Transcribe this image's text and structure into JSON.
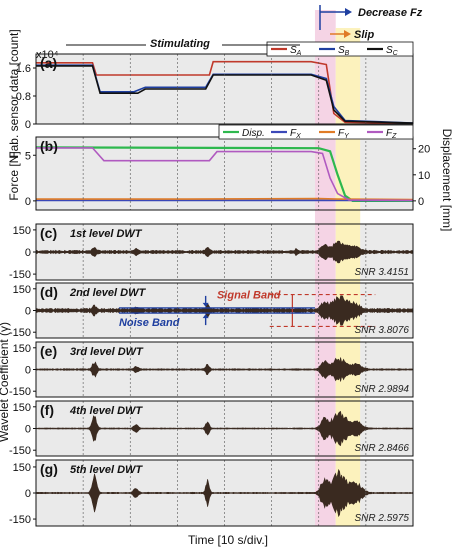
{
  "header": {
    "decrease_label": "Decrease Fz",
    "slip_label": "Slip",
    "stimulating_label": "Stimulating",
    "exponent_label": "x10⁴"
  },
  "axes_text": {
    "xlabel": "Time [10 s/div.]",
    "ylabel_a": "Fab. sensor data [count]",
    "ylabel_b": "Force [N]",
    "ylabel_b_right": "Displacement [mm]",
    "ylabel_dwt": "Wavelet Coefficient (γ)"
  },
  "colors": {
    "sA": "#c0392b",
    "sB": "#1f3fa0",
    "sC": "#111111",
    "disp": "#2eb84e",
    "Fx": "#3b48b8",
    "Fy": "#e07b26",
    "Fz": "#b05ac0",
    "pink": "#f2c6dc",
    "yellow": "#fbf0b2",
    "gray": "#d9d9d9",
    "wave": "#3a2a20",
    "signal_band": "#c0392b",
    "noise_band": "#1f3fa0"
  },
  "chart_data": [
    {
      "id": "a",
      "letter": "(a)",
      "type": "line",
      "ylim": [
        0,
        2.0
      ],
      "yticks": [
        "1.6",
        "0.8",
        "0"
      ],
      "ytick_values": [
        1.6,
        0.8,
        0
      ],
      "legend": [
        "SA",
        "SB",
        "SC"
      ],
      "series": [
        {
          "name": "SA",
          "color_key": "sA",
          "points": [
            [
              0,
              1.75
            ],
            [
              0.15,
              1.75
            ],
            [
              0.16,
              1.4
            ],
            [
              0.46,
              1.4
            ],
            [
              0.47,
              1.78
            ],
            [
              0.73,
              1.78
            ],
            [
              0.77,
              1.7
            ],
            [
              0.79,
              0.3
            ],
            [
              0.82,
              0.05
            ],
            [
              1.0,
              0.02
            ]
          ]
        },
        {
          "name": "SB",
          "color_key": "sB",
          "points": [
            [
              0,
              1.68
            ],
            [
              0.15,
              1.68
            ],
            [
              0.17,
              0.92
            ],
            [
              0.26,
              0.92
            ],
            [
              0.29,
              1.05
            ],
            [
              0.45,
              1.05
            ],
            [
              0.47,
              1.42
            ],
            [
              0.73,
              1.42
            ],
            [
              0.77,
              1.3
            ],
            [
              0.79,
              0.5
            ],
            [
              0.82,
              0.1
            ],
            [
              1.0,
              0.03
            ]
          ]
        },
        {
          "name": "SC",
          "color_key": "sC",
          "points": [
            [
              0,
              1.66
            ],
            [
              0.15,
              1.66
            ],
            [
              0.17,
              0.88
            ],
            [
              0.27,
              0.88
            ],
            [
              0.29,
              1.0
            ],
            [
              0.45,
              1.0
            ],
            [
              0.47,
              1.4
            ],
            [
              0.73,
              1.4
            ],
            [
              0.77,
              1.25
            ],
            [
              0.79,
              0.4
            ],
            [
              0.82,
              0.08
            ],
            [
              1.0,
              0.03
            ]
          ]
        }
      ]
    },
    {
      "id": "b",
      "letter": "(b)",
      "type": "line",
      "ylim": [
        -1,
        7
      ],
      "yticks": [
        "5",
        "0"
      ],
      "ytick_values": [
        5,
        0
      ],
      "y2ticks": [
        "20",
        "10",
        "0"
      ],
      "y2tick_values": [
        20,
        10,
        0
      ],
      "y2lim": [
        -3.5,
        24.5
      ],
      "legend": [
        "Disp.",
        "FX",
        "FY",
        "FZ"
      ],
      "series": [
        {
          "name": "Disp.",
          "color_key": "disp",
          "axis": "right",
          "points": [
            [
              0,
              20.5
            ],
            [
              0.75,
              20.2
            ],
            [
              0.78,
              19.0
            ],
            [
              0.8,
              10.0
            ],
            [
              0.82,
              2.0
            ],
            [
              0.84,
              0.0
            ],
            [
              1.0,
              0.0
            ]
          ]
        },
        {
          "name": "FX",
          "color_key": "Fx",
          "axis": "left",
          "points": [
            [
              0,
              0.05
            ],
            [
              1.0,
              0.05
            ]
          ]
        },
        {
          "name": "FY",
          "color_key": "Fy",
          "axis": "left",
          "points": [
            [
              0,
              0.2
            ],
            [
              0.4,
              0.2
            ],
            [
              0.75,
              0.25
            ],
            [
              0.8,
              0.2
            ],
            [
              1.0,
              0.15
            ]
          ]
        },
        {
          "name": "FZ",
          "color_key": "Fz",
          "axis": "left",
          "points": [
            [
              0,
              5.8
            ],
            [
              0.15,
              5.8
            ],
            [
              0.18,
              4.4
            ],
            [
              0.46,
              4.4
            ],
            [
              0.48,
              5.4
            ],
            [
              0.73,
              5.4
            ],
            [
              0.76,
              5.2
            ],
            [
              0.78,
              2.5
            ],
            [
              0.8,
              0.8
            ],
            [
              0.83,
              0.1
            ],
            [
              1.0,
              0.05
            ]
          ]
        }
      ]
    },
    {
      "id": "c",
      "letter": "(c)",
      "title": "1st level DWT",
      "snr": "SNR 3.4151",
      "type": "area",
      "ylim": [
        -190,
        190
      ],
      "yticks": [
        "150",
        "0",
        "-150"
      ],
      "ytick_values": [
        150,
        0,
        -150
      ],
      "base_amp": 8,
      "bursts": [
        {
          "t": 0.155,
          "amp": 25,
          "w": 0.008
        },
        {
          "t": 0.265,
          "amp": 18,
          "w": 0.008
        },
        {
          "t": 0.455,
          "amp": 30,
          "w": 0.006
        },
        {
          "t": 0.69,
          "amp": 20,
          "w": 0.004
        },
        {
          "t": 0.765,
          "amp": 45,
          "w": 0.012
        },
        {
          "t": 0.805,
          "amp": 70,
          "w": 0.025
        },
        {
          "t": 0.845,
          "amp": 35,
          "w": 0.02
        }
      ]
    },
    {
      "id": "d",
      "letter": "(d)",
      "title": "2nd level DWT",
      "snr": "SNR 3.8076",
      "type": "area",
      "ylim": [
        -190,
        190
      ],
      "yticks": [
        "150",
        "0",
        "-150"
      ],
      "ytick_values": [
        150,
        0,
        -150
      ],
      "base_amp": 10,
      "signal_band": "Signal Band",
      "noise_band": "Noise Band",
      "signal_level": 110,
      "noise_level": 18,
      "bursts": [
        {
          "t": 0.155,
          "amp": 28,
          "w": 0.008
        },
        {
          "t": 0.265,
          "amp": 22,
          "w": 0.008
        },
        {
          "t": 0.455,
          "amp": 40,
          "w": 0.006
        },
        {
          "t": 0.765,
          "amp": 55,
          "w": 0.012
        },
        {
          "t": 0.805,
          "amp": 100,
          "w": 0.025
        },
        {
          "t": 0.845,
          "amp": 40,
          "w": 0.02
        }
      ]
    },
    {
      "id": "e",
      "letter": "(e)",
      "title": "3rd level DWT",
      "snr": "SNR 2.9894",
      "type": "area",
      "ylim": [
        -190,
        190
      ],
      "yticks": [
        "150",
        "0",
        "-150"
      ],
      "ytick_values": [
        150,
        0,
        -150
      ],
      "base_amp": 4,
      "bursts": [
        {
          "t": 0.155,
          "amp": 55,
          "w": 0.008
        },
        {
          "t": 0.265,
          "amp": 20,
          "w": 0.008
        },
        {
          "t": 0.455,
          "amp": 40,
          "w": 0.006
        },
        {
          "t": 0.765,
          "amp": 60,
          "w": 0.012
        },
        {
          "t": 0.805,
          "amp": 85,
          "w": 0.025
        },
        {
          "t": 0.85,
          "amp": 35,
          "w": 0.02
        }
      ]
    },
    {
      "id": "f",
      "letter": "(f)",
      "title": "4th level DWT",
      "snr": "SNR 2.8466",
      "type": "area",
      "ylim": [
        -190,
        190
      ],
      "yticks": [
        "150",
        "0",
        "-150"
      ],
      "ytick_values": [
        150,
        0,
        -150
      ],
      "base_amp": 3,
      "bursts": [
        {
          "t": 0.155,
          "amp": 95,
          "w": 0.008
        },
        {
          "t": 0.265,
          "amp": 25,
          "w": 0.008
        },
        {
          "t": 0.455,
          "amp": 65,
          "w": 0.006
        },
        {
          "t": 0.765,
          "amp": 85,
          "w": 0.012
        },
        {
          "t": 0.805,
          "amp": 120,
          "w": 0.025
        },
        {
          "t": 0.85,
          "amp": 50,
          "w": 0.02
        }
      ]
    },
    {
      "id": "g",
      "letter": "(g)",
      "title": "5th level DWT",
      "snr": "SNR 2.5975",
      "type": "area",
      "ylim": [
        -190,
        190
      ],
      "yticks": [
        "150",
        "0",
        "-150"
      ],
      "ytick_values": [
        150,
        0,
        -150
      ],
      "base_amp": 3,
      "bursts": [
        {
          "t": 0.155,
          "amp": 110,
          "w": 0.008
        },
        {
          "t": 0.265,
          "amp": 30,
          "w": 0.008
        },
        {
          "t": 0.455,
          "amp": 80,
          "w": 0.006
        },
        {
          "t": 0.765,
          "amp": 95,
          "w": 0.012
        },
        {
          "t": 0.805,
          "amp": 140,
          "w": 0.025
        },
        {
          "t": 0.85,
          "amp": 60,
          "w": 0.02
        }
      ]
    }
  ]
}
